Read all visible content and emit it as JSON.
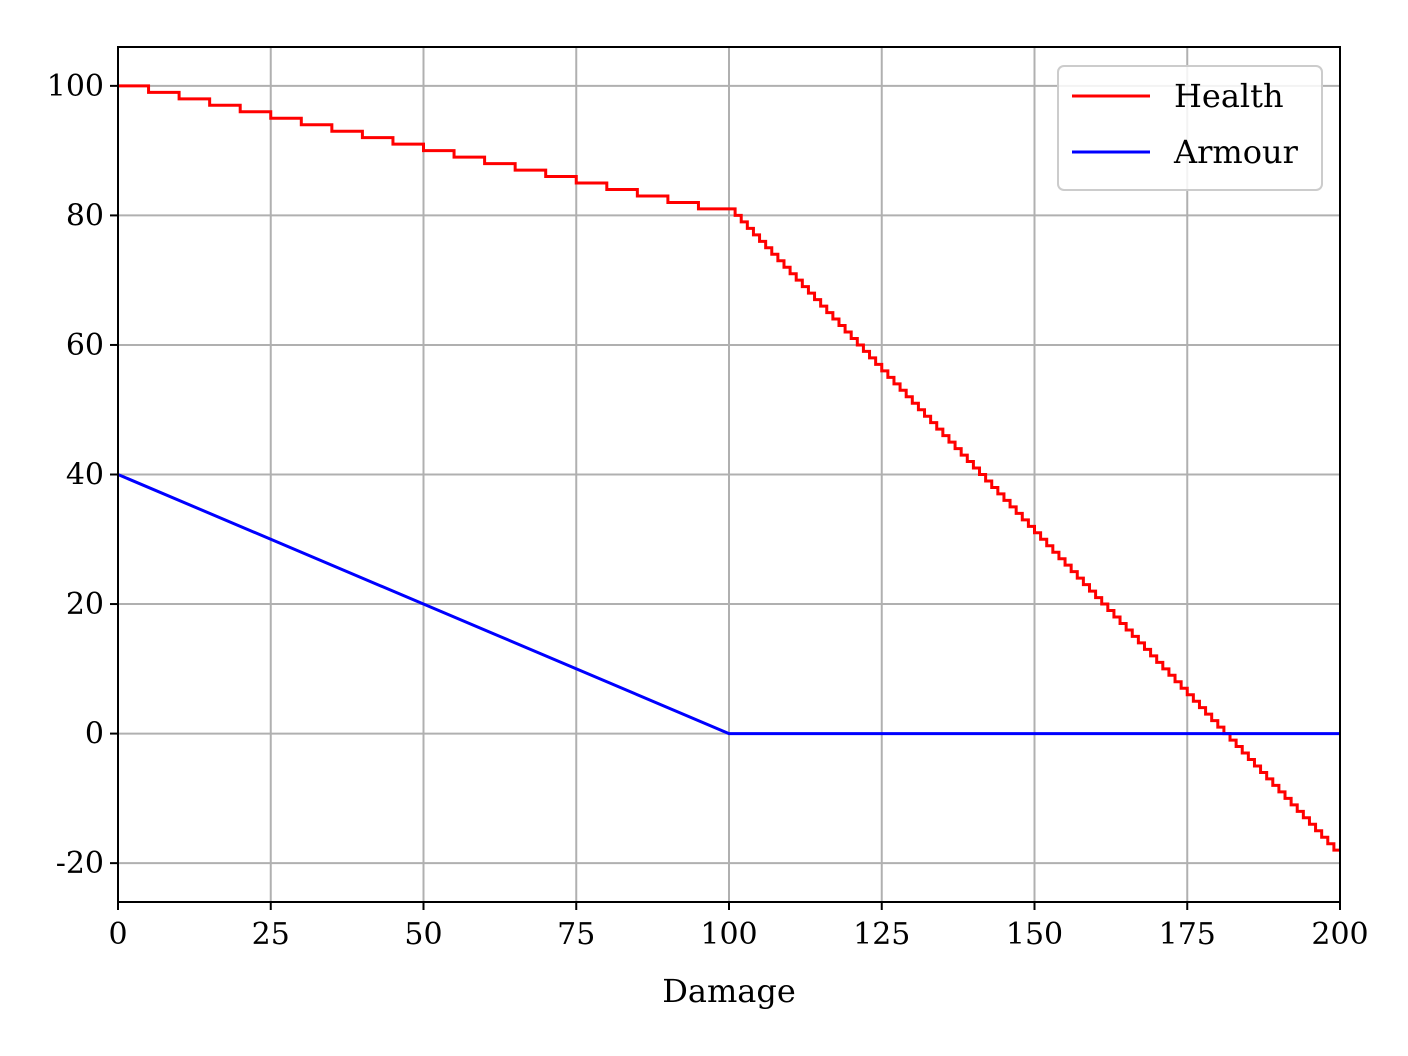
{
  "chart_data": {
    "type": "line",
    "title": "",
    "xlabel": "Damage",
    "ylabel": "",
    "xlim": [
      0,
      200
    ],
    "ylim": [
      -26,
      106
    ],
    "xticks": [
      0,
      25,
      50,
      75,
      100,
      125,
      150,
      175,
      200
    ],
    "yticks": [
      -20,
      0,
      20,
      40,
      60,
      80,
      100
    ],
    "grid": true,
    "legend_position": "top-right",
    "series": [
      {
        "name": "Health",
        "color": "#ff0000",
        "style": "step",
        "description_points": [
          [
            0,
            100
          ],
          [
            100,
            81
          ],
          [
            200,
            -19
          ]
        ],
        "phases": [
          {
            "x_start": 0,
            "x_end": 100,
            "step_width": 5,
            "y_start": 100
          },
          {
            "x_start": 100,
            "x_end": 200,
            "step_width": 1,
            "y_start": 81
          }
        ]
      },
      {
        "name": "Armour",
        "color": "#0000ff",
        "style": "line",
        "x": [
          0,
          100,
          200
        ],
        "y": [
          40,
          0,
          0
        ]
      }
    ]
  }
}
